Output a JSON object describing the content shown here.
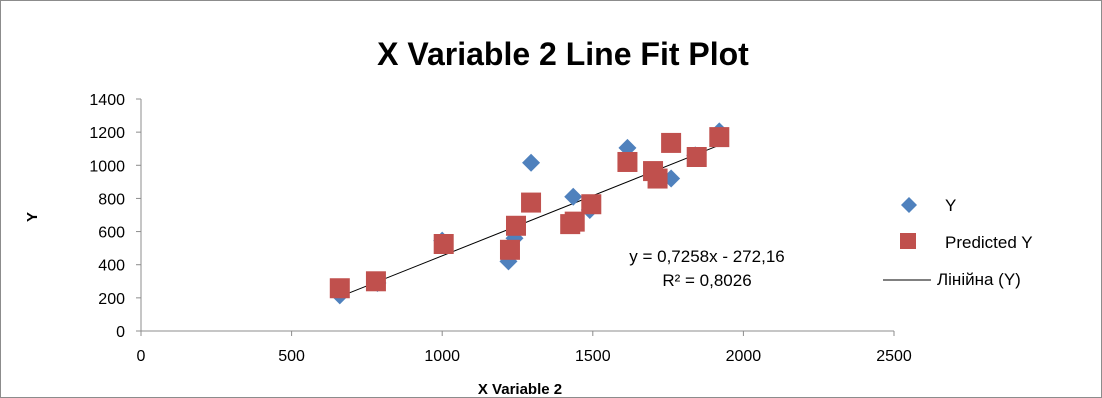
{
  "chart_data": {
    "type": "scatter",
    "title": "X Variable 2 Line Fit  Plot",
    "xlabel": "X Variable 2",
    "ylabel": "Y",
    "xlim": [
      0,
      2500
    ],
    "ylim": [
      0,
      1400
    ],
    "xticks": [
      "0",
      "500",
      "1000",
      "1500",
      "2000",
      "2500"
    ],
    "xtick_values": [
      0,
      500,
      1000,
      1500,
      2000,
      2500
    ],
    "yticks": [
      "0",
      "200",
      "400",
      "600",
      "800",
      "1000",
      "1200",
      "1400"
    ],
    "ytick_values": [
      0,
      200,
      400,
      600,
      800,
      1000,
      1200,
      1400
    ],
    "grid": false,
    "legend_position": "right",
    "series": [
      {
        "name": "Y",
        "marker": "diamond",
        "color": "#4f81bd",
        "points": [
          [
            660,
            215
          ],
          [
            785,
            290
          ],
          [
            1000,
            545
          ],
          [
            1220,
            420
          ],
          [
            1240,
            560
          ],
          [
            1295,
            1015
          ],
          [
            1435,
            810
          ],
          [
            1490,
            730
          ],
          [
            1615,
            1105
          ],
          [
            1700,
            965
          ],
          [
            1760,
            920
          ],
          [
            1840,
            1060
          ],
          [
            1920,
            1205
          ]
        ]
      },
      {
        "name": "Predicted Y",
        "marker": "square",
        "color": "#c0504d",
        "points": [
          [
            660,
            258
          ],
          [
            780,
            300
          ],
          [
            1005,
            525
          ],
          [
            1225,
            490
          ],
          [
            1245,
            635
          ],
          [
            1295,
            775
          ],
          [
            1425,
            645
          ],
          [
            1440,
            660
          ],
          [
            1495,
            765
          ],
          [
            1615,
            1020
          ],
          [
            1700,
            965
          ],
          [
            1715,
            920
          ],
          [
            1760,
            1135
          ],
          [
            1845,
            1050
          ],
          [
            1920,
            1170
          ]
        ]
      }
    ],
    "trendline": {
      "legend_label": "Лінійна (Y)",
      "slope": 0.7258,
      "intercept": -272.16,
      "x_range": [
        660,
        1920
      ],
      "color": "#000000",
      "equation_text": "y = 0,7258x - 272,16",
      "r2_text": "R² = 0,8026"
    }
  }
}
